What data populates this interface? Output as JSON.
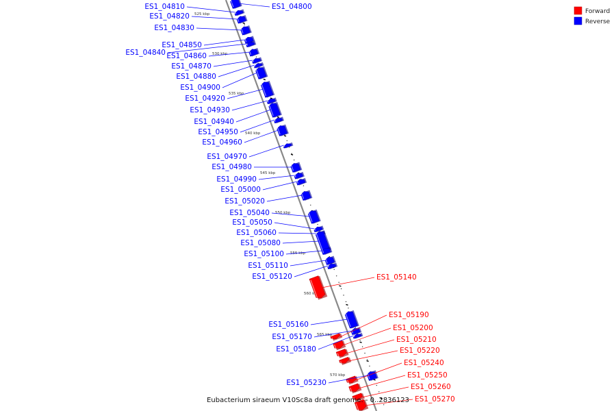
{
  "caption": "Eubacterium siraeum V10Sc8a draft genome. - 0..2836123",
  "legend": [
    {
      "label": "Forward",
      "color": "#ff0000"
    },
    {
      "label": "Reverse",
      "color": "#0000ff"
    }
  ],
  "colors": {
    "forward": "#ff0000",
    "reverse": "#0000ff",
    "backbone": "#999999"
  },
  "scale_labels": [
    "525 kbp",
    "530 kbp",
    "535 kbp",
    "540 kbp",
    "545 kbp",
    "550 kbp",
    "555 kbp",
    "560 kbp",
    "565 kbp",
    "570 kbp"
  ],
  "genes": [
    {
      "id": "ES1_04800",
      "strand": "reverse"
    },
    {
      "id": "ES1_04810",
      "strand": "reverse"
    },
    {
      "id": "ES1_04820",
      "strand": "reverse"
    },
    {
      "id": "ES1_04830",
      "strand": "reverse"
    },
    {
      "id": "ES1_04850",
      "strand": "reverse"
    },
    {
      "id": "ES1_04840",
      "strand": "reverse"
    },
    {
      "id": "ES1_04860",
      "strand": "reverse"
    },
    {
      "id": "ES1_04870",
      "strand": "reverse"
    },
    {
      "id": "ES1_04880",
      "strand": "reverse"
    },
    {
      "id": "ES1_04900",
      "strand": "reverse"
    },
    {
      "id": "ES1_04920",
      "strand": "reverse"
    },
    {
      "id": "ES1_04930",
      "strand": "reverse"
    },
    {
      "id": "ES1_04940",
      "strand": "reverse"
    },
    {
      "id": "ES1_04950",
      "strand": "reverse"
    },
    {
      "id": "ES1_04960",
      "strand": "reverse"
    },
    {
      "id": "ES1_04970",
      "strand": "reverse"
    },
    {
      "id": "ES1_04980",
      "strand": "reverse"
    },
    {
      "id": "ES1_04990",
      "strand": "reverse"
    },
    {
      "id": "ES1_05000",
      "strand": "reverse"
    },
    {
      "id": "ES1_05020",
      "strand": "reverse"
    },
    {
      "id": "ES1_05040",
      "strand": "reverse"
    },
    {
      "id": "ES1_05050",
      "strand": "reverse"
    },
    {
      "id": "ES1_05060",
      "strand": "reverse"
    },
    {
      "id": "ES1_05080",
      "strand": "reverse"
    },
    {
      "id": "ES1_05100",
      "strand": "reverse"
    },
    {
      "id": "ES1_05110",
      "strand": "reverse"
    },
    {
      "id": "ES1_05120",
      "strand": "reverse"
    },
    {
      "id": "ES1_05140",
      "strand": "forward"
    },
    {
      "id": "ES1_05160",
      "strand": "reverse"
    },
    {
      "id": "ES1_05170",
      "strand": "reverse"
    },
    {
      "id": "ES1_05180",
      "strand": "reverse"
    },
    {
      "id": "ES1_05190",
      "strand": "forward"
    },
    {
      "id": "ES1_05200",
      "strand": "forward"
    },
    {
      "id": "ES1_05210",
      "strand": "forward"
    },
    {
      "id": "ES1_05220",
      "strand": "forward"
    },
    {
      "id": "ES1_05230",
      "strand": "reverse"
    },
    {
      "id": "ES1_05240",
      "strand": "forward"
    },
    {
      "id": "ES1_05250",
      "strand": "forward"
    },
    {
      "id": "ES1_05260",
      "strand": "forward"
    },
    {
      "id": "ES1_05270",
      "strand": "forward"
    }
  ]
}
